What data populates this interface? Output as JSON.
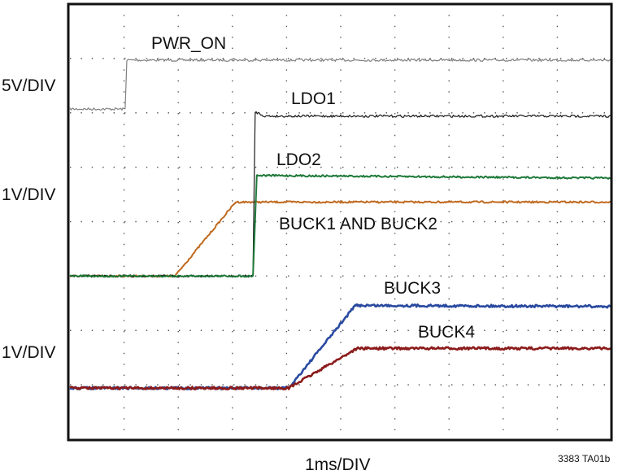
{
  "chart_data": {
    "type": "line",
    "title": "",
    "xlabel": "1ms/DIV",
    "x_units": "ms",
    "xlim": [
      0,
      10
    ],
    "ylim_div": [
      0,
      8
    ],
    "grid": true,
    "figure_id": "3383 TA01b",
    "channel_scales": [
      {
        "label": "5V/DIV"
      },
      {
        "label": "1V/DIV"
      },
      {
        "label": "1V/DIV"
      }
    ],
    "series": [
      {
        "name": "PWR_ON",
        "color": "#808080",
        "points": [
          [
            0,
            6.07
          ],
          [
            1.02,
            6.07
          ],
          [
            1.05,
            6.97
          ],
          [
            10,
            6.97
          ]
        ]
      },
      {
        "name": "LDO1",
        "color": "#1a1a1a",
        "points": [
          [
            0,
            3.0
          ],
          [
            3.38,
            3.0
          ],
          [
            3.42,
            6.02
          ],
          [
            3.6,
            5.94
          ],
          [
            10,
            5.94
          ]
        ]
      },
      {
        "name": "LDO2",
        "color": "#1f7a3a",
        "points": [
          [
            0,
            3.0
          ],
          [
            3.38,
            3.0
          ],
          [
            3.45,
            4.85
          ],
          [
            10,
            4.8
          ]
        ]
      },
      {
        "name": "BUCK1 AND BUCK2",
        "color": "#c06a20",
        "points": [
          [
            0,
            3.0
          ],
          [
            1.94,
            3.0
          ],
          [
            3.06,
            4.36
          ],
          [
            10,
            4.36
          ]
        ]
      },
      {
        "name": "BUCK3",
        "color": "#2a4aa0",
        "points": [
          [
            0,
            0.94
          ],
          [
            4.04,
            0.94
          ],
          [
            5.27,
            2.46
          ],
          [
            10,
            2.44
          ]
        ]
      },
      {
        "name": "BUCK4",
        "color": "#8b1a1a",
        "points": [
          [
            0,
            0.94
          ],
          [
            4.04,
            0.94
          ],
          [
            5.3,
            1.67
          ],
          [
            10,
            1.67
          ]
        ]
      }
    ]
  }
}
